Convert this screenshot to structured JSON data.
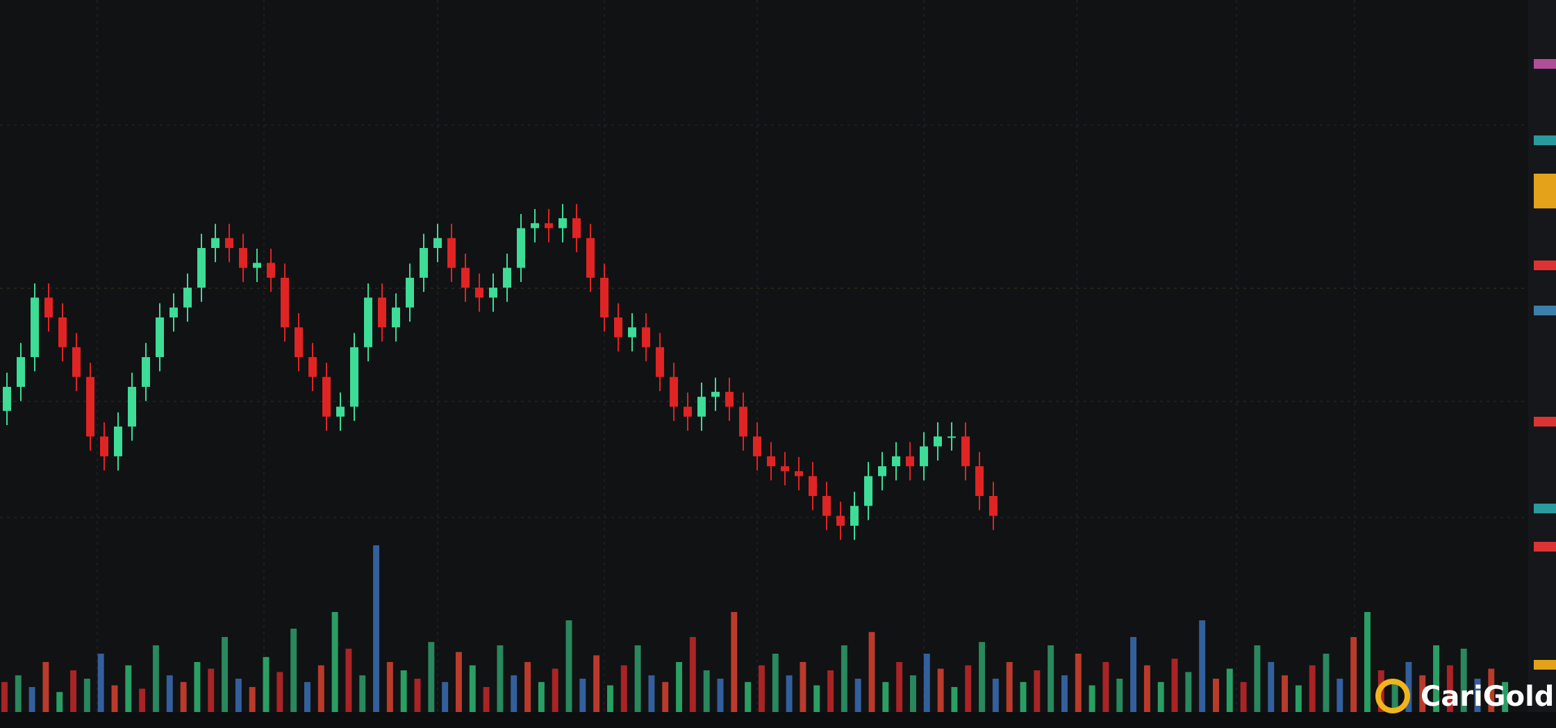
{
  "brand": "CariGold",
  "chart_data": [
    {
      "type": "candlestick",
      "ylim": [
        0,
        100
      ],
      "up_color": "#3ddc97",
      "down_color": "#e02424",
      "open": [
        42,
        45.4,
        49.6,
        58,
        55.2,
        51,
        46.8,
        38.4,
        35.6,
        39.8,
        45.4,
        49.6,
        55.2,
        56.6,
        59.4,
        65,
        66.4,
        65,
        62.2,
        62.9,
        60.8,
        53.8,
        49.6,
        46.8,
        41.2,
        42.6,
        51,
        58,
        53.8,
        56.6,
        60.8,
        65,
        66.4,
        62.2,
        59.4,
        58,
        59.4,
        62.2,
        67.8,
        68.5,
        67.8,
        69.2,
        66.4,
        60.8,
        55.2,
        52.4,
        53.8,
        51,
        46.8,
        42.6,
        41.2,
        44,
        44.7,
        42.6,
        38.4,
        35.6,
        34.2,
        33.5,
        32.8,
        30,
        27.2,
        25.8,
        28.6,
        32.8,
        34.2,
        35.6,
        34.2,
        37,
        38.4,
        38.4,
        34.2,
        30
      ],
      "high": [
        47.4,
        51.6,
        60,
        60,
        57.2,
        53,
        48.8,
        40.4,
        41.8,
        47.4,
        51.6,
        57.2,
        58.6,
        61.4,
        67,
        68.4,
        68.4,
        67,
        64.9,
        64.9,
        62.8,
        55.8,
        51.6,
        48.8,
        44.6,
        53,
        60,
        60,
        58.6,
        62.8,
        67,
        68.4,
        68.4,
        64.2,
        61.4,
        61.4,
        64.2,
        69.8,
        70.5,
        70.5,
        71.2,
        71.2,
        68.4,
        62.8,
        57.2,
        55.8,
        55.8,
        53,
        48.8,
        44.6,
        46,
        46.7,
        46.7,
        44.6,
        40.4,
        37.6,
        36.2,
        35.5,
        34.8,
        32,
        29.2,
        30.6,
        34.8,
        36.2,
        37.6,
        37.6,
        39,
        40.4,
        40.4,
        40.4,
        36.2,
        32
      ],
      "low": [
        40,
        43.4,
        47.6,
        53.2,
        49,
        44.8,
        36.4,
        33.6,
        33.6,
        37.8,
        43.4,
        47.6,
        53.2,
        54.6,
        57.4,
        63,
        63,
        60.2,
        60.2,
        58.8,
        51.8,
        47.6,
        44.8,
        39.2,
        39.2,
        40.6,
        49,
        51.8,
        51.8,
        54.6,
        58.8,
        63,
        60.2,
        57.4,
        56,
        56,
        57.4,
        60.2,
        65.8,
        65.8,
        65.8,
        64.4,
        58.8,
        53.2,
        50.4,
        50.4,
        49,
        44.8,
        40.6,
        39.2,
        39.2,
        42,
        40.6,
        36.4,
        33.6,
        32.2,
        31.5,
        30.8,
        28,
        25.2,
        23.8,
        23.8,
        26.6,
        30.8,
        32.2,
        32.2,
        32.2,
        35,
        36.4,
        32.2,
        28,
        25.2
      ],
      "close": [
        45.4,
        49.6,
        58,
        55.2,
        51,
        46.8,
        38.4,
        35.6,
        39.8,
        45.4,
        49.6,
        55.2,
        56.6,
        59.4,
        65,
        66.4,
        65,
        62.2,
        62.9,
        60.8,
        53.8,
        49.6,
        46.8,
        41.2,
        42.6,
        51,
        58,
        53.8,
        56.6,
        60.8,
        65,
        66.4,
        62.2,
        59.4,
        58,
        59.4,
        62.2,
        67.8,
        68.5,
        67.8,
        69.2,
        66.4,
        60.8,
        55.2,
        52.4,
        53.8,
        51,
        46.8,
        42.6,
        41.2,
        44,
        44.7,
        42.6,
        38.4,
        35.6,
        34.2,
        33.5,
        32.8,
        30,
        27.2,
        25.8,
        28.6,
        32.8,
        34.2,
        35.6,
        34.2,
        37,
        38.4,
        38.4,
        34.2,
        30,
        27.2
      ]
    },
    {
      "type": "volume",
      "ylim": [
        0,
        100
      ],
      "palette": [
        "#c62828",
        "#2e9e6a",
        "#3a6fb5",
        "#d8432f",
        "#2fb872"
      ],
      "values": [
        18,
        22,
        15,
        30,
        12,
        25,
        20,
        35,
        16,
        28,
        14,
        40,
        22,
        18,
        30,
        26,
        45,
        20,
        15,
        33,
        24,
        50,
        18,
        28,
        60,
        38,
        22,
        100,
        30,
        25,
        20,
        42,
        18,
        36,
        28,
        15,
        40,
        22,
        30,
        18,
        26,
        55,
        20,
        34,
        16,
        28,
        40,
        22,
        18,
        30,
        45,
        25,
        20,
        60,
        18,
        28,
        35,
        22,
        30,
        16,
        25,
        40,
        20,
        48,
        18,
        30,
        22,
        35,
        26,
        15,
        28,
        42,
        20,
        30,
        18,
        25,
        40,
        22,
        35,
        16,
        30,
        20,
        45,
        28,
        18,
        32,
        24,
        55,
        20,
        26,
        18,
        40,
        30,
        22,
        16,
        28,
        35,
        20,
        45,
        60,
        25,
        18,
        30,
        22,
        40,
        28,
        38,
        20,
        26,
        18
      ]
    }
  ]
}
